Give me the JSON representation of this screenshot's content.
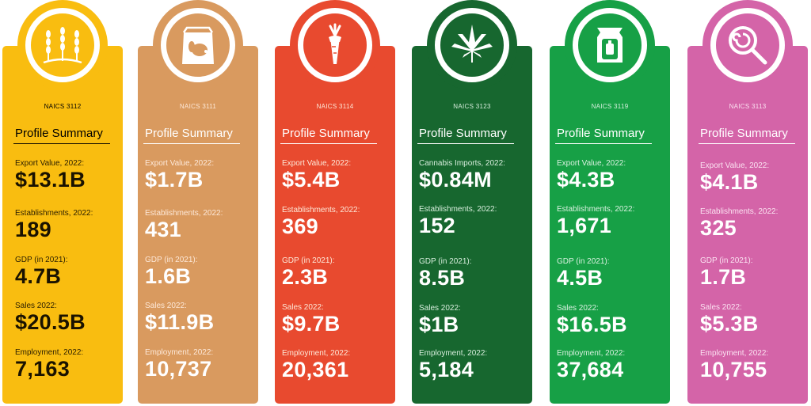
{
  "cards": [
    {
      "naics": "NAICS 3112",
      "heading": "Profile Summary",
      "icon": "wheat-icon",
      "color": "#F9BD10",
      "metrics": [
        {
          "label": "Export Value, 2022:",
          "value": "$13.1B"
        },
        {
          "label": "Establishments, 2022:",
          "value": "189"
        },
        {
          "label": "GDP (in 2021):",
          "value": "4.7B"
        },
        {
          "label": "Sales 2022:",
          "value": "$20.5B"
        },
        {
          "label": "Employment, 2022:",
          "value": "7,163"
        }
      ]
    },
    {
      "naics": "NAICS 3111",
      "heading": "Profile Summary",
      "icon": "pet-food-bag-icon",
      "color": "#D99A5F",
      "metrics": [
        {
          "label": "Export Value, 2022:",
          "value": "$1.7B"
        },
        {
          "label": "Establishments, 2022:",
          "value": "431"
        },
        {
          "label": "GDP (in 2021):",
          "value": "1.6B"
        },
        {
          "label": "Sales 2022:",
          "value": "$11.9B"
        },
        {
          "label": "Employment, 2022:",
          "value": "10,737"
        }
      ]
    },
    {
      "naics": "NAICS 3114",
      "heading": "Profile Summary",
      "icon": "carrot-icon",
      "color": "#E84A2F",
      "metrics": [
        {
          "label": "Export Value, 2022:",
          "value": "$5.4B"
        },
        {
          "label": "Establishments, 2022:",
          "value": "369"
        },
        {
          "label": "GDP (in 2021):",
          "value": "2.3B"
        },
        {
          "label": "Sales 2022:",
          "value": "$9.7B"
        },
        {
          "label": "Employment, 2022:",
          "value": "20,361"
        }
      ]
    },
    {
      "naics": "NAICS 3123",
      "heading": "Profile Summary",
      "icon": "cannabis-leaf-icon",
      "color": "#17672F",
      "metrics": [
        {
          "label": "Cannabis Imports, 2022:",
          "value": "$0.84M"
        },
        {
          "label": "Establishments, 2022:",
          "value": "152"
        },
        {
          "label": "GDP (in 2021):",
          "value": "8.5B"
        },
        {
          "label": "Sales 2022:",
          "value": "$1B"
        },
        {
          "label": "Employment, 2022:",
          "value": "5,184"
        }
      ]
    },
    {
      "naics": "NAICS 3119",
      "heading": "Profile Summary",
      "icon": "snack-bag-icon",
      "color": "#17A046",
      "metrics": [
        {
          "label": "Export Value, 2022:",
          "value": "$4.3B"
        },
        {
          "label": "Establishments, 2022:",
          "value": "1,671"
        },
        {
          "label": "GDP (in 2021):",
          "value": "4.5B"
        },
        {
          "label": "Sales 2022:",
          "value": "$16.5B"
        },
        {
          "label": "Employment, 2022:",
          "value": "37,684"
        }
      ]
    },
    {
      "naics": "NAICS 3113",
      "heading": "Profile Summary",
      "icon": "lollipop-icon",
      "color": "#D464A8",
      "metrics": [
        {
          "label": "Export Value, 2022:",
          "value": "$4.1B"
        },
        {
          "label": "Establishments, 2022:",
          "value": "325"
        },
        {
          "label": "GDP (in 2021):",
          "value": "1.7B"
        },
        {
          "label": "Sales 2022:",
          "value": "$5.3B"
        },
        {
          "label": "Employment, 2022:",
          "value": "10,755"
        }
      ]
    }
  ]
}
